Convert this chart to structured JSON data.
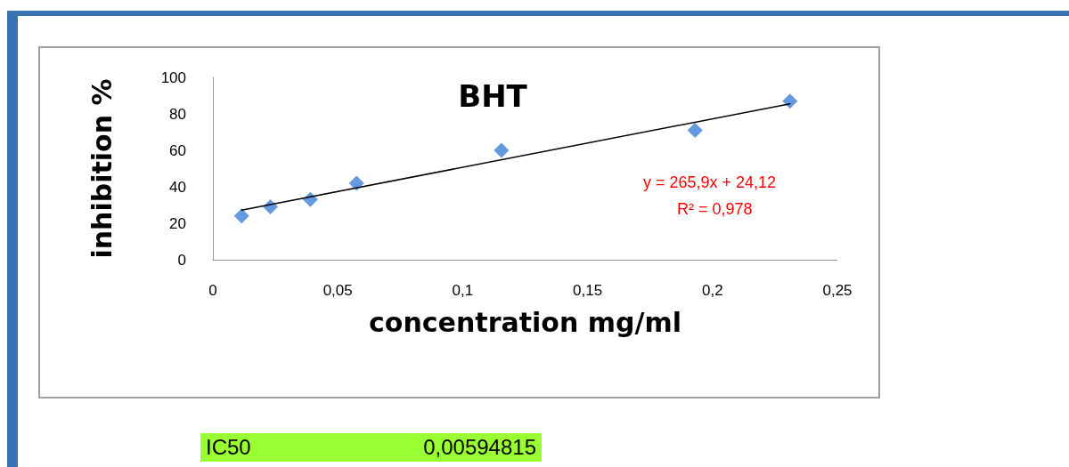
{
  "chart_data": {
    "type": "scatter",
    "title": "BHT",
    "xlabel": "concentration mg/ml",
    "ylabel": "inhibition %",
    "xlim": [
      0,
      0.25
    ],
    "xticks": [
      0,
      {
        "value": 0.05,
        "label": "0,05"
      },
      {
        "value": 0.1,
        "label": "0,1"
      },
      {
        "value": 0.15,
        "label": "0,15"
      },
      {
        "value": 0.2,
        "label": "0,2"
      },
      {
        "value": 0.25,
        "label": "0,25"
      }
    ],
    "ylim": [
      0,
      100
    ],
    "yticks": [
      0,
      20,
      40,
      60,
      80,
      100
    ],
    "series": [
      {
        "marker": "diamond",
        "color": "#3c7fd6",
        "x": [
          0.0115,
          0.023,
          0.039,
          0.0575,
          0.1155,
          0.193,
          0.231
        ],
        "values": [
          24,
          29,
          33,
          42,
          60,
          71,
          87
        ]
      },
      {
        "type": "line",
        "marker": "none",
        "color": "#000000",
        "x": [
          0.0115,
          0.231
        ],
        "values": [
          27.2,
          85.5
        ]
      }
    ],
    "annotations": [
      "y = 265,9x + 24,12",
      "R² = 0,978",
      "IC50",
      "0,00594815"
    ]
  }
}
